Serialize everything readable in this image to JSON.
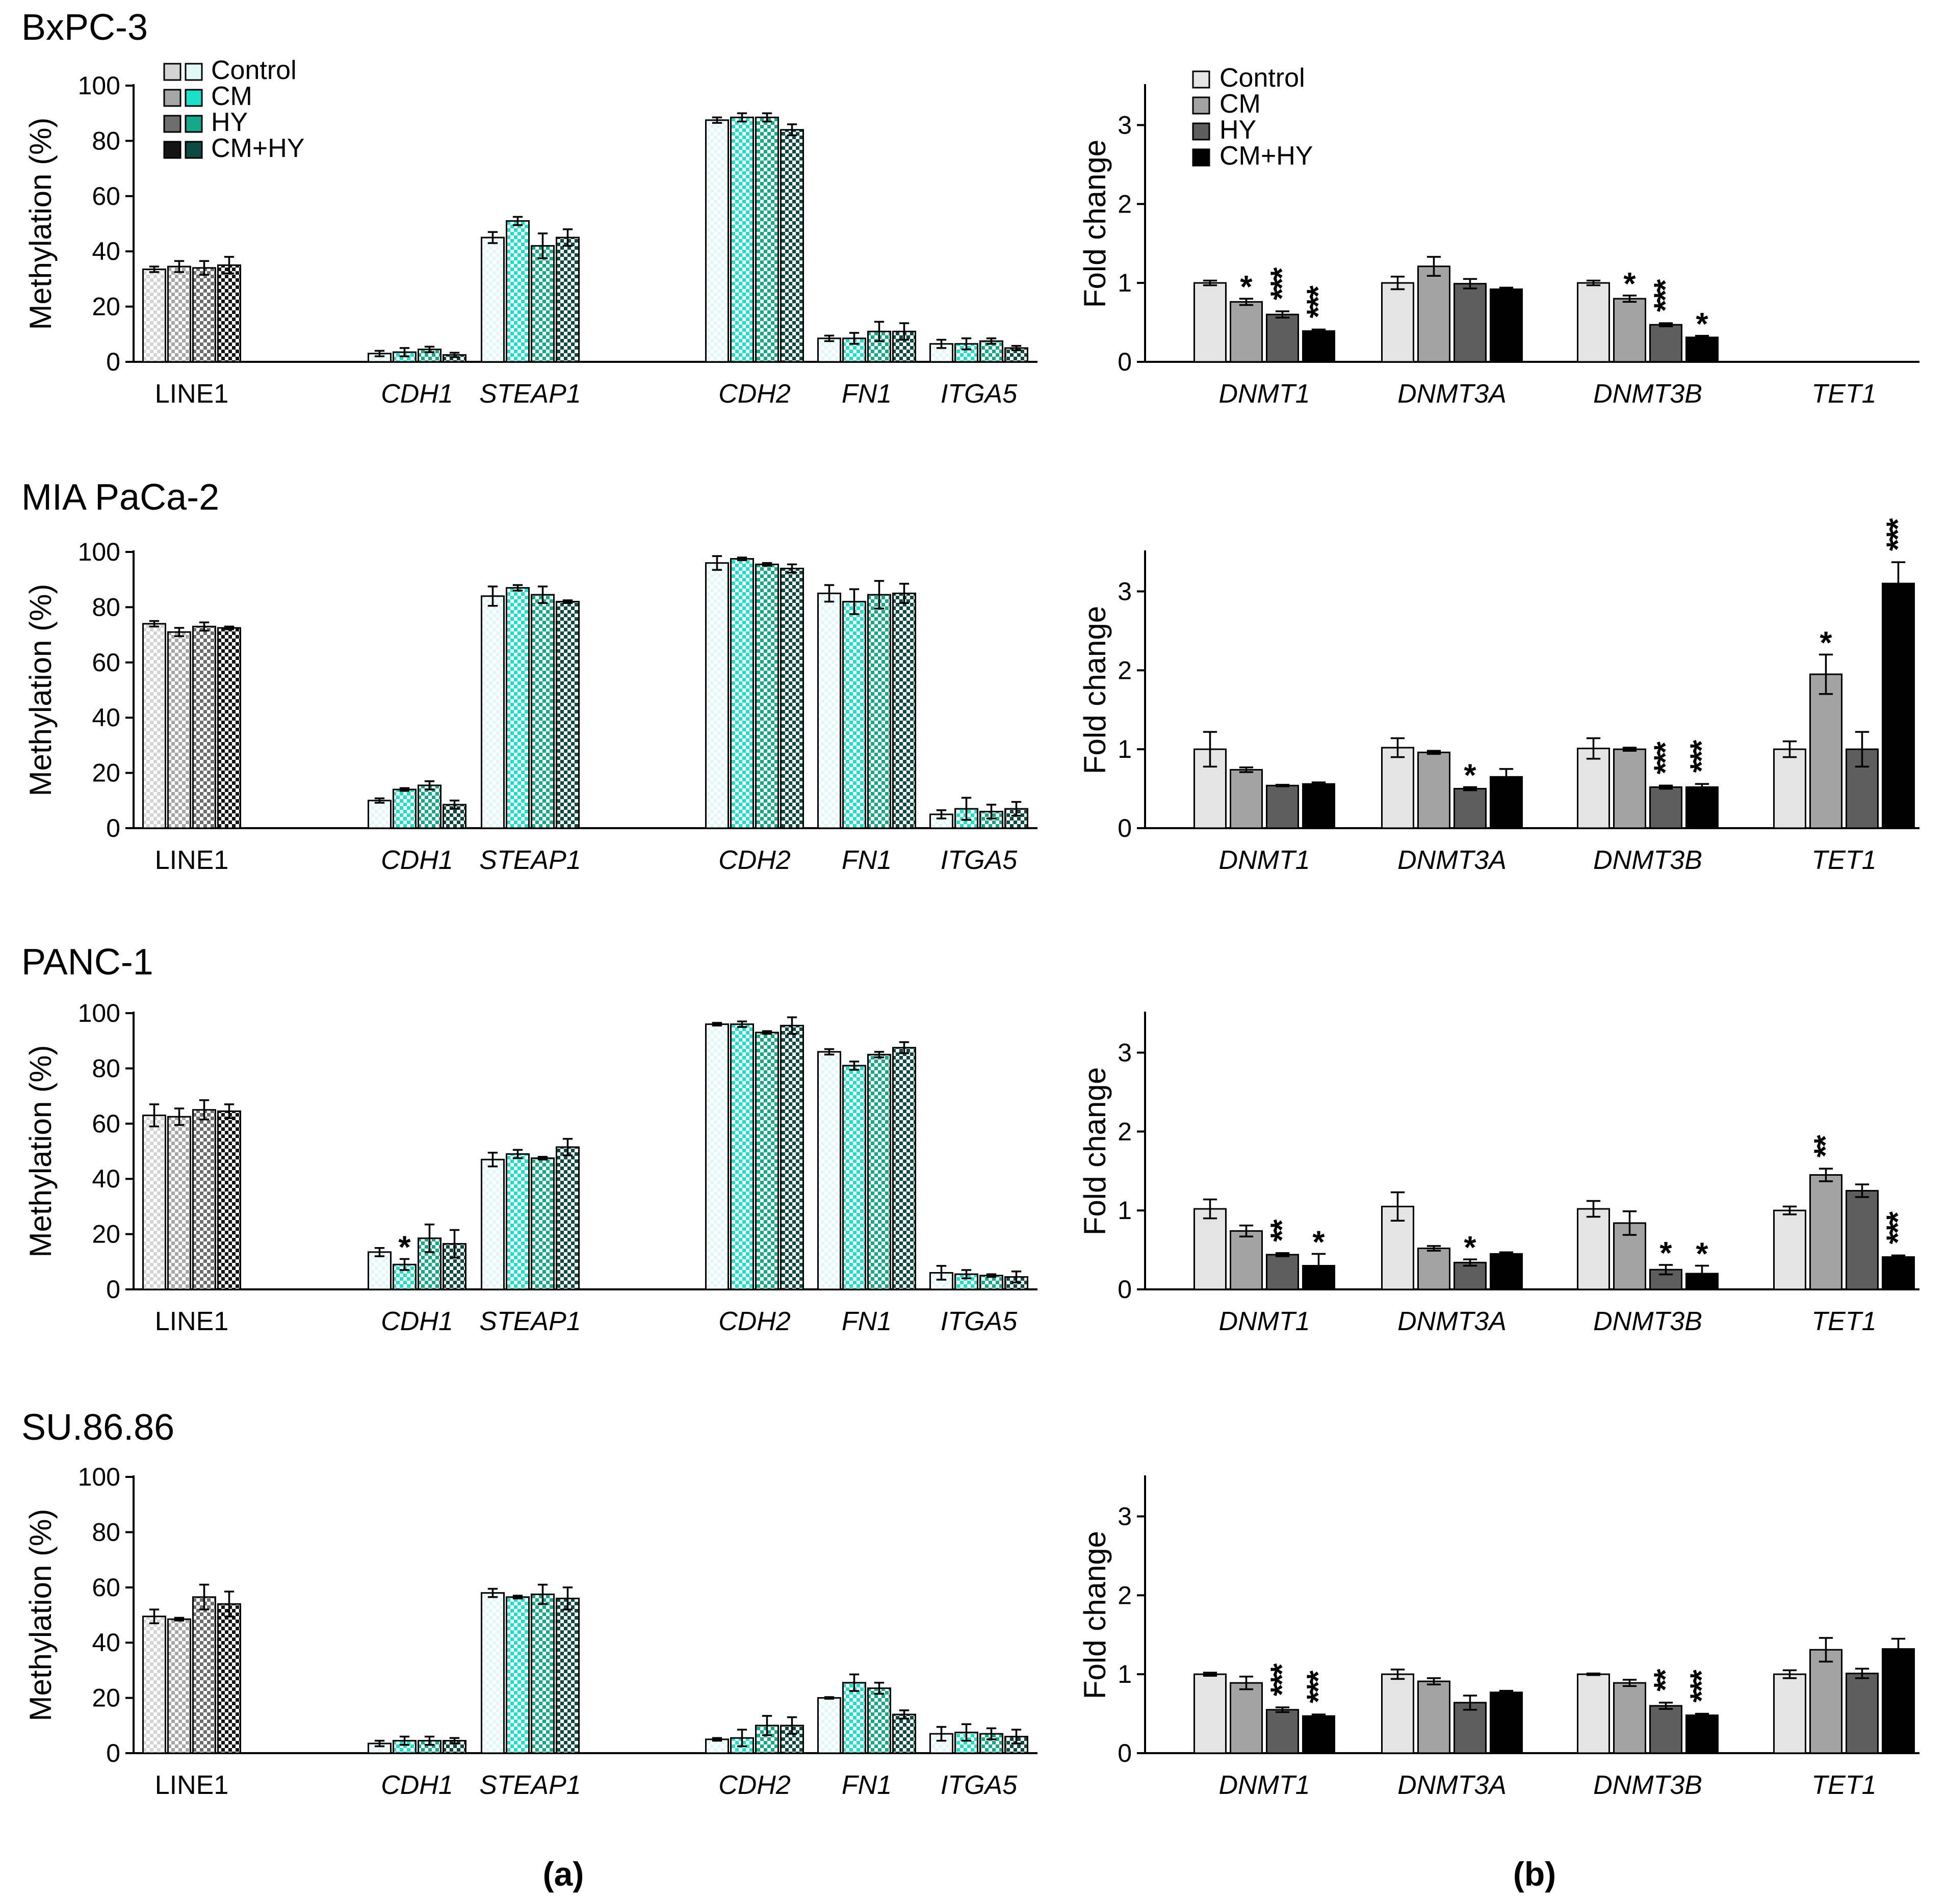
{
  "panel_labels": [
    "(a)",
    "(b)"
  ],
  "legend": {
    "labels": [
      "Control",
      "CM",
      "HY",
      "CM+HY"
    ],
    "solid_colors": [
      "#e4e4e4",
      "#a3a3a3",
      "#5e5e5e",
      "#000000"
    ],
    "teal_colors": [
      "#e2f8f6",
      "#1ae0c9",
      "#12a888",
      "#0b4a40"
    ],
    "gray_hatch_colors": [
      "#d4d4d4",
      "#a6a6a6",
      "#6e6e6e",
      "#141414"
    ]
  },
  "chart_data": [
    {
      "id": "a-bxpc3",
      "cell_line": "BxPC-3",
      "type": "bar",
      "ylabel": "Methylation (%)",
      "ylim": [
        0,
        100
      ],
      "yticks": [
        0,
        20,
        40,
        60,
        80,
        100
      ],
      "categories": [
        "LINE1",
        "CDH1",
        "STEAP1",
        "CDH2",
        "FN1",
        "ITGA5"
      ],
      "italic": [
        false,
        true,
        true,
        true,
        true,
        true
      ],
      "series": [
        {
          "name": "Control",
          "values": [
            33.5,
            3,
            45,
            87.5,
            8.5,
            6.5
          ],
          "errors": [
            1,
            1,
            2,
            1,
            1,
            1.5
          ]
        },
        {
          "name": "CM",
          "values": [
            34.5,
            3.5,
            51,
            88.5,
            8.5,
            6.5
          ],
          "errors": [
            2,
            1.5,
            1.5,
            1.5,
            2,
            2
          ]
        },
        {
          "name": "HY",
          "values": [
            34,
            4.5,
            42,
            88.5,
            11,
            7.5
          ],
          "errors": [
            2.5,
            1,
            4.5,
            1.5,
            3.5,
            1
          ]
        },
        {
          "name": "CM+HY",
          "values": [
            35,
            2.5,
            45,
            84,
            11,
            5
          ],
          "errors": [
            3,
            0.8,
            3,
            2,
            3,
            0.8
          ]
        }
      ],
      "significance": []
    },
    {
      "id": "b-bxpc3",
      "cell_line": "BxPC-3",
      "type": "bar",
      "ylabel": "Fold change",
      "ylim": [
        0,
        3.5
      ],
      "yticks": [
        0,
        1,
        2,
        3
      ],
      "categories": [
        "DNMT1",
        "DNMT3A",
        "DNMT3B",
        "TET1"
      ],
      "italic": [
        true,
        true,
        true,
        true
      ],
      "series": [
        {
          "name": "Control",
          "values": [
            1.0,
            1.0,
            1.0,
            null
          ],
          "errors": [
            0.03,
            0.08,
            0.03,
            null
          ]
        },
        {
          "name": "CM",
          "values": [
            0.76,
            1.21,
            0.8,
            null
          ],
          "errors": [
            0.04,
            0.12,
            0.04,
            null
          ]
        },
        {
          "name": "HY",
          "values": [
            0.6,
            0.99,
            0.47,
            null
          ],
          "errors": [
            0.04,
            0.06,
            0.02,
            null
          ]
        },
        {
          "name": "CM+HY",
          "values": [
            0.39,
            0.92,
            0.31,
            null
          ],
          "errors": [
            0.02,
            0.02,
            0.02,
            null
          ]
        }
      ],
      "significance": [
        {
          "category": 0,
          "series": 1,
          "label": "*"
        },
        {
          "category": 0,
          "series": 2,
          "label": "***"
        },
        {
          "category": 0,
          "series": 3,
          "label": "***"
        },
        {
          "category": 2,
          "series": 1,
          "label": "*"
        },
        {
          "category": 2,
          "series": 2,
          "label": "***"
        },
        {
          "category": 2,
          "series": 3,
          "label": "*"
        }
      ]
    },
    {
      "id": "a-miapaca2",
      "cell_line": "MIA PaCa-2",
      "type": "bar",
      "ylabel": "Methylation (%)",
      "ylim": [
        0,
        100
      ],
      "yticks": [
        0,
        20,
        40,
        60,
        80,
        100
      ],
      "categories": [
        "LINE1",
        "CDH1",
        "STEAP1",
        "CDH2",
        "FN1",
        "ITGA5"
      ],
      "italic": [
        false,
        true,
        true,
        true,
        true,
        true
      ],
      "series": [
        {
          "name": "Control",
          "values": [
            74,
            10,
            84,
            96,
            85,
            5
          ],
          "errors": [
            1,
            0.8,
            3.5,
            2.5,
            3,
            1.5
          ]
        },
        {
          "name": "CM",
          "values": [
            71,
            14,
            87,
            97.5,
            82,
            7
          ],
          "errors": [
            1.5,
            0.5,
            1,
            0.5,
            4.5,
            4
          ]
        },
        {
          "name": "HY",
          "values": [
            73,
            15.5,
            84.5,
            95.5,
            84.5,
            6
          ],
          "errors": [
            1.5,
            1.5,
            3,
            0.5,
            5,
            2.5
          ]
        },
        {
          "name": "CM+HY",
          "values": [
            72.5,
            8.5,
            82,
            94,
            85,
            7
          ],
          "errors": [
            0.5,
            1.5,
            0.5,
            1.5,
            3.5,
            2.5
          ]
        }
      ],
      "significance": []
    },
    {
      "id": "b-miapaca2",
      "cell_line": "MIA PaCa-2",
      "type": "bar",
      "ylabel": "Fold change",
      "ylim": [
        0,
        3.5
      ],
      "yticks": [
        0,
        1,
        2,
        3
      ],
      "categories": [
        "DNMT1",
        "DNMT3A",
        "DNMT3B",
        "TET1"
      ],
      "italic": [
        true,
        true,
        true,
        true
      ],
      "series": [
        {
          "name": "Control",
          "values": [
            1.0,
            1.02,
            1.01,
            1.0
          ],
          "errors": [
            0.22,
            0.12,
            0.13,
            0.1
          ]
        },
        {
          "name": "CM",
          "values": [
            0.74,
            0.96,
            1.0,
            1.95
          ],
          "errors": [
            0.03,
            0.02,
            0.02,
            0.25
          ]
        },
        {
          "name": "HY",
          "values": [
            0.54,
            0.5,
            0.52,
            1.0
          ],
          "errors": [
            0.01,
            0.02,
            0.02,
            0.22
          ]
        },
        {
          "name": "CM+HY",
          "values": [
            0.56,
            0.65,
            0.52,
            3.1
          ],
          "errors": [
            0.02,
            0.1,
            0.04,
            0.27
          ]
        }
      ],
      "significance": [
        {
          "category": 1,
          "series": 2,
          "label": "*"
        },
        {
          "category": 2,
          "series": 2,
          "label": "***"
        },
        {
          "category": 2,
          "series": 3,
          "label": "***"
        },
        {
          "category": 3,
          "series": 1,
          "label": "*"
        },
        {
          "category": 3,
          "series": 3,
          "label": "***"
        }
      ]
    },
    {
      "id": "a-panc1",
      "cell_line": "PANC-1",
      "type": "bar",
      "ylabel": "Methylation (%)",
      "ylim": [
        0,
        100
      ],
      "yticks": [
        0,
        20,
        40,
        60,
        80,
        100
      ],
      "categories": [
        "LINE1",
        "CDH1",
        "STEAP1",
        "CDH2",
        "FN1",
        "ITGA5"
      ],
      "italic": [
        false,
        true,
        true,
        true,
        true,
        true
      ],
      "series": [
        {
          "name": "Control",
          "values": [
            63,
            13.5,
            47,
            96,
            86,
            6
          ],
          "errors": [
            4,
            1.5,
            2.5,
            0.5,
            1,
            2.5
          ]
        },
        {
          "name": "CM",
          "values": [
            62.5,
            9,
            49,
            96,
            81,
            5.5
          ],
          "errors": [
            3,
            2,
            1.5,
            1,
            1.5,
            1.5
          ]
        },
        {
          "name": "HY",
          "values": [
            65,
            18.5,
            47.5,
            93,
            85,
            5
          ],
          "errors": [
            3.5,
            5,
            0.5,
            0.5,
            1,
            0.5
          ]
        },
        {
          "name": "CM+HY",
          "values": [
            64.5,
            16.5,
            51.5,
            95.5,
            87.5,
            4.5
          ],
          "errors": [
            2.5,
            5,
            3,
            3,
            2,
            2
          ]
        }
      ],
      "significance": [
        {
          "category": 1,
          "series": 1,
          "label": "*"
        }
      ]
    },
    {
      "id": "b-panc1",
      "cell_line": "PANC-1",
      "type": "bar",
      "ylabel": "Fold change",
      "ylim": [
        0,
        3.5
      ],
      "yticks": [
        0,
        1,
        2,
        3
      ],
      "categories": [
        "DNMT1",
        "DNMT3A",
        "DNMT3B",
        "TET1"
      ],
      "italic": [
        true,
        true,
        true,
        true
      ],
      "series": [
        {
          "name": "Control",
          "values": [
            1.02,
            1.05,
            1.02,
            1.0
          ],
          "errors": [
            0.12,
            0.18,
            0.1,
            0.05
          ]
        },
        {
          "name": "CM",
          "values": [
            0.74,
            0.52,
            0.84,
            1.45
          ],
          "errors": [
            0.07,
            0.03,
            0.15,
            0.08
          ]
        },
        {
          "name": "HY",
          "values": [
            0.44,
            0.34,
            0.25,
            1.25
          ],
          "errors": [
            0.02,
            0.04,
            0.06,
            0.08
          ]
        },
        {
          "name": "CM+HY",
          "values": [
            0.3,
            0.45,
            0.2,
            0.41
          ],
          "errors": [
            0.15,
            0.02,
            0.1,
            0.02
          ]
        }
      ],
      "significance": [
        {
          "category": 0,
          "series": 2,
          "label": "**"
        },
        {
          "category": 0,
          "series": 3,
          "label": "*"
        },
        {
          "category": 1,
          "series": 2,
          "label": "*"
        },
        {
          "category": 2,
          "series": 2,
          "label": "*"
        },
        {
          "category": 2,
          "series": 3,
          "label": "*"
        },
        {
          "category": 3,
          "series": 1,
          "label": "**"
        },
        {
          "category": 3,
          "series": 3,
          "label": "***"
        }
      ]
    },
    {
      "id": "a-su8686",
      "cell_line": "SU.86.86",
      "type": "bar",
      "ylabel": "Methylation (%)",
      "ylim": [
        0,
        100
      ],
      "yticks": [
        0,
        20,
        40,
        60,
        80,
        100
      ],
      "categories": [
        "LINE1",
        "CDH1",
        "STEAP1",
        "CDH2",
        "FN1",
        "ITGA5"
      ],
      "italic": [
        false,
        true,
        true,
        true,
        true,
        true
      ],
      "series": [
        {
          "name": "Control",
          "values": [
            49.5,
            3.5,
            58,
            5,
            20,
            7
          ],
          "errors": [
            2.5,
            1,
            1.5,
            0.5,
            0.3,
            2.5
          ]
        },
        {
          "name": "CM",
          "values": [
            48.5,
            4.5,
            56.5,
            5.5,
            25.5,
            7.5
          ],
          "errors": [
            0.5,
            1.5,
            0.5,
            3,
            3,
            3
          ]
        },
        {
          "name": "HY",
          "values": [
            56.5,
            4.5,
            57.5,
            10,
            23.5,
            7
          ],
          "errors": [
            4.5,
            1.5,
            3.5,
            3.5,
            2,
            2
          ]
        },
        {
          "name": "CM+HY",
          "values": [
            54,
            4.5,
            56,
            10,
            14,
            6
          ],
          "errors": [
            4.5,
            1,
            4,
            3,
            1.5,
            2.5
          ]
        }
      ],
      "significance": []
    },
    {
      "id": "b-su8686",
      "cell_line": "SU.86.86",
      "type": "bar",
      "ylabel": "Fold change",
      "ylim": [
        0,
        3.5
      ],
      "yticks": [
        0,
        1,
        2,
        3
      ],
      "categories": [
        "DNMT1",
        "DNMT3A",
        "DNMT3B",
        "TET1"
      ],
      "italic": [
        true,
        true,
        true,
        true
      ],
      "series": [
        {
          "name": "Control",
          "values": [
            1.0,
            1.0,
            1.0,
            1.0
          ],
          "errors": [
            0.02,
            0.06,
            0.01,
            0.05
          ]
        },
        {
          "name": "CM",
          "values": [
            0.89,
            0.91,
            0.89,
            1.31
          ],
          "errors": [
            0.08,
            0.04,
            0.04,
            0.15
          ]
        },
        {
          "name": "HY",
          "values": [
            0.55,
            0.64,
            0.6,
            1.01
          ],
          "errors": [
            0.03,
            0.09,
            0.04,
            0.06
          ]
        },
        {
          "name": "CM+HY",
          "values": [
            0.47,
            0.77,
            0.48,
            1.32
          ],
          "errors": [
            0.02,
            0.02,
            0.02,
            0.13
          ]
        }
      ],
      "significance": [
        {
          "category": 0,
          "series": 2,
          "label": "***"
        },
        {
          "category": 0,
          "series": 3,
          "label": "***"
        },
        {
          "category": 2,
          "series": 2,
          "label": "**"
        },
        {
          "category": 2,
          "series": 3,
          "label": "***"
        }
      ]
    }
  ]
}
